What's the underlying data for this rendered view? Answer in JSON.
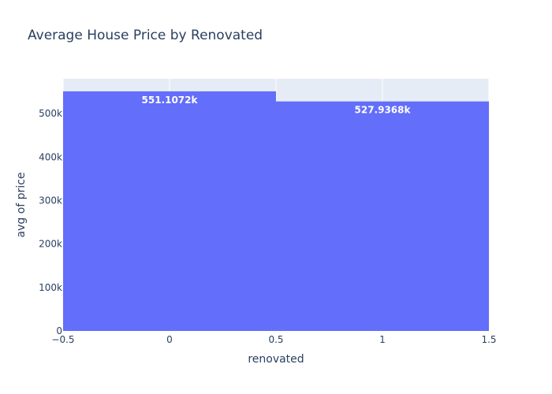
{
  "chart_data": {
    "type": "bar",
    "title": "Average House Price by Renovated",
    "xlabel": "renovated",
    "ylabel": "avg of price",
    "x": [
      0,
      1
    ],
    "values": [
      551107.2,
      527936.8
    ],
    "data_labels": [
      "551.1072k",
      "527.9368k"
    ],
    "xlim": [
      -0.5,
      1.5
    ],
    "ylim": [
      0,
      580000
    ],
    "x_ticks": [
      -0.5,
      0,
      0.5,
      1,
      1.5
    ],
    "x_tick_labels": [
      "−0.5",
      "0",
      "0.5",
      "1",
      "1.5"
    ],
    "y_ticks": [
      0,
      100000,
      200000,
      300000,
      400000,
      500000
    ],
    "y_tick_labels": [
      "0",
      "100k",
      "200k",
      "300k",
      "400k",
      "500k"
    ],
    "grid": true,
    "legend": false,
    "colors": {
      "bar": "#636efa",
      "plot_background": "#e5ecf6",
      "text": "#2a3f5f",
      "bar_label": "#ffffff"
    }
  }
}
